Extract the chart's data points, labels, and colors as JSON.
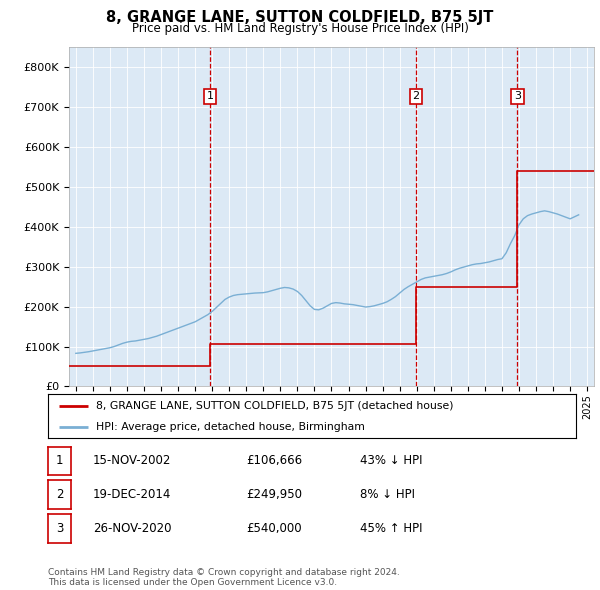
{
  "title": "8, GRANGE LANE, SUTTON COLDFIELD, B75 5JT",
  "subtitle": "Price paid vs. HM Land Registry's House Price Index (HPI)",
  "ylim": [
    0,
    850000
  ],
  "yticks": [
    0,
    100000,
    200000,
    300000,
    400000,
    500000,
    600000,
    700000,
    800000
  ],
  "ytick_labels": [
    "£0",
    "£100K",
    "£200K",
    "£300K",
    "£400K",
    "£500K",
    "£600K",
    "£700K",
    "£800K"
  ],
  "xlim_start": 1994.6,
  "xlim_end": 2025.4,
  "plot_bg_color": "#dce9f5",
  "red_color": "#cc0000",
  "blue_color": "#7aafd4",
  "sale_dates": [
    2002.876,
    2014.962,
    2020.91
  ],
  "sale_prices": [
    106666,
    249950,
    540000
  ],
  "sale_labels": [
    "1",
    "2",
    "3"
  ],
  "legend_red_label": "8, GRANGE LANE, SUTTON COLDFIELD, B75 5JT (detached house)",
  "legend_blue_label": "HPI: Average price, detached house, Birmingham",
  "table_rows": [
    [
      "1",
      "15-NOV-2002",
      "£106,666",
      "43% ↓ HPI"
    ],
    [
      "2",
      "19-DEC-2014",
      "£249,950",
      "8% ↓ HPI"
    ],
    [
      "3",
      "26-NOV-2020",
      "£540,000",
      "45% ↑ HPI"
    ]
  ],
  "footer": "Contains HM Land Registry data © Crown copyright and database right 2024.\nThis data is licensed under the Open Government Licence v3.0.",
  "hpi_years": [
    1995,
    1995.25,
    1995.5,
    1995.75,
    1996,
    1996.25,
    1996.5,
    1996.75,
    1997,
    1997.25,
    1997.5,
    1997.75,
    1998,
    1998.25,
    1998.5,
    1998.75,
    1999,
    1999.25,
    1999.5,
    1999.75,
    2000,
    2000.25,
    2000.5,
    2000.75,
    2001,
    2001.25,
    2001.5,
    2001.75,
    2002,
    2002.25,
    2002.5,
    2002.75,
    2003,
    2003.25,
    2003.5,
    2003.75,
    2004,
    2004.25,
    2004.5,
    2004.75,
    2005,
    2005.25,
    2005.5,
    2005.75,
    2006,
    2006.25,
    2006.5,
    2006.75,
    2007,
    2007.25,
    2007.5,
    2007.75,
    2008,
    2008.25,
    2008.5,
    2008.75,
    2009,
    2009.25,
    2009.5,
    2009.75,
    2010,
    2010.25,
    2010.5,
    2010.75,
    2011,
    2011.25,
    2011.5,
    2011.75,
    2012,
    2012.25,
    2012.5,
    2012.75,
    2013,
    2013.25,
    2013.5,
    2013.75,
    2014,
    2014.25,
    2014.5,
    2014.75,
    2015,
    2015.25,
    2015.5,
    2015.75,
    2016,
    2016.25,
    2016.5,
    2016.75,
    2017,
    2017.25,
    2017.5,
    2017.75,
    2018,
    2018.25,
    2018.5,
    2018.75,
    2019,
    2019.25,
    2019.5,
    2019.75,
    2020,
    2020.25,
    2020.5,
    2020.75,
    2021,
    2021.25,
    2021.5,
    2021.75,
    2022,
    2022.25,
    2022.5,
    2022.75,
    2023,
    2023.25,
    2023.5,
    2023.75,
    2024,
    2024.25,
    2024.5
  ],
  "hpi_values": [
    83000,
    84000,
    85500,
    87000,
    89000,
    91000,
    93000,
    95000,
    97000,
    100000,
    104000,
    108000,
    111000,
    113000,
    114000,
    116000,
    118000,
    120000,
    123000,
    126000,
    130000,
    134000,
    138000,
    142000,
    146000,
    150000,
    154000,
    158000,
    162000,
    168000,
    174000,
    180000,
    188000,
    198000,
    208000,
    218000,
    224000,
    228000,
    230000,
    231000,
    232000,
    233000,
    234000,
    234500,
    235000,
    237000,
    240000,
    243000,
    246000,
    248000,
    247000,
    244000,
    238000,
    228000,
    215000,
    202000,
    193000,
    192000,
    196000,
    202000,
    208000,
    210000,
    209000,
    207000,
    206000,
    205000,
    203000,
    201000,
    199000,
    200000,
    202000,
    205000,
    208000,
    212000,
    218000,
    225000,
    234000,
    243000,
    250000,
    256000,
    262000,
    268000,
    272000,
    274000,
    276000,
    278000,
    280000,
    283000,
    287000,
    292000,
    296000,
    299000,
    302000,
    305000,
    307000,
    308000,
    310000,
    312000,
    315000,
    318000,
    320000,
    335000,
    358000,
    378000,
    405000,
    420000,
    428000,
    432000,
    435000,
    438000,
    440000,
    438000,
    435000,
    432000,
    428000,
    424000,
    420000,
    425000,
    430000
  ],
  "price_paid_years": [
    1994.6,
    2002.876,
    2002.876,
    2014.962,
    2014.962,
    2020.91,
    2020.91,
    2025.4
  ],
  "price_paid_values": [
    50000,
    50000,
    106666,
    106666,
    249950,
    249950,
    540000,
    540000
  ]
}
